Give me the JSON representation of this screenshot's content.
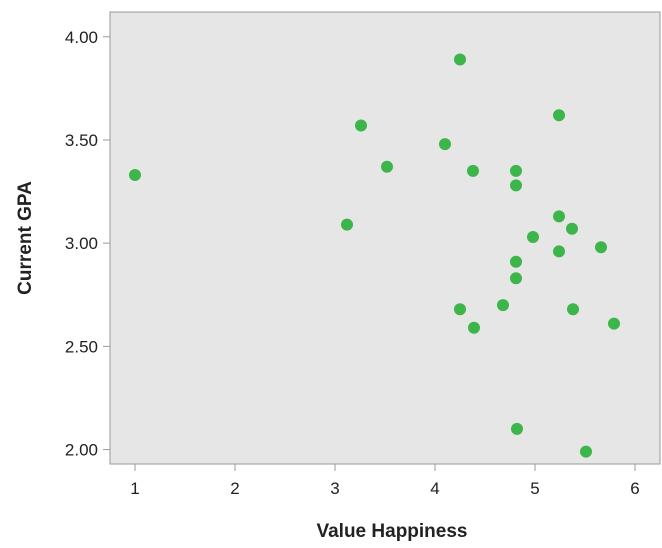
{
  "chart_data": {
    "type": "scatter",
    "title": "",
    "xlabel": "Value Happiness",
    "ylabel": "Current GPA",
    "xlim": [
      0.75,
      6.25
    ],
    "ylim": [
      1.93,
      4.12
    ],
    "xticks": [
      1,
      2,
      3,
      4,
      5,
      6
    ],
    "xtick_labels": [
      "1",
      "2",
      "3",
      "4",
      "5",
      "6"
    ],
    "yticks": [
      2.0,
      2.5,
      3.0,
      3.5,
      4.0
    ],
    "ytick_labels": [
      "2.00",
      "2.50",
      "3.00",
      "3.50",
      "4.00"
    ],
    "grid": false,
    "background_color": "#e6e6e6",
    "point_color": "#3cb54a",
    "points": [
      {
        "x": 1.0,
        "y": 3.33
      },
      {
        "x": 3.12,
        "y": 3.09
      },
      {
        "x": 3.26,
        "y": 3.57
      },
      {
        "x": 3.52,
        "y": 3.37
      },
      {
        "x": 4.1,
        "y": 3.48
      },
      {
        "x": 4.25,
        "y": 3.89
      },
      {
        "x": 4.25,
        "y": 2.68
      },
      {
        "x": 4.38,
        "y": 3.35
      },
      {
        "x": 4.39,
        "y": 2.59
      },
      {
        "x": 4.68,
        "y": 2.7
      },
      {
        "x": 4.81,
        "y": 3.35
      },
      {
        "x": 4.81,
        "y": 3.28
      },
      {
        "x": 4.81,
        "y": 2.91
      },
      {
        "x": 4.81,
        "y": 2.83
      },
      {
        "x": 4.82,
        "y": 2.1
      },
      {
        "x": 4.98,
        "y": 3.03
      },
      {
        "x": 5.24,
        "y": 3.62
      },
      {
        "x": 5.24,
        "y": 3.13
      },
      {
        "x": 5.24,
        "y": 2.96
      },
      {
        "x": 5.37,
        "y": 3.07
      },
      {
        "x": 5.38,
        "y": 2.68
      },
      {
        "x": 5.51,
        "y": 1.99
      },
      {
        "x": 5.66,
        "y": 2.98
      },
      {
        "x": 5.79,
        "y": 2.61
      }
    ]
  }
}
